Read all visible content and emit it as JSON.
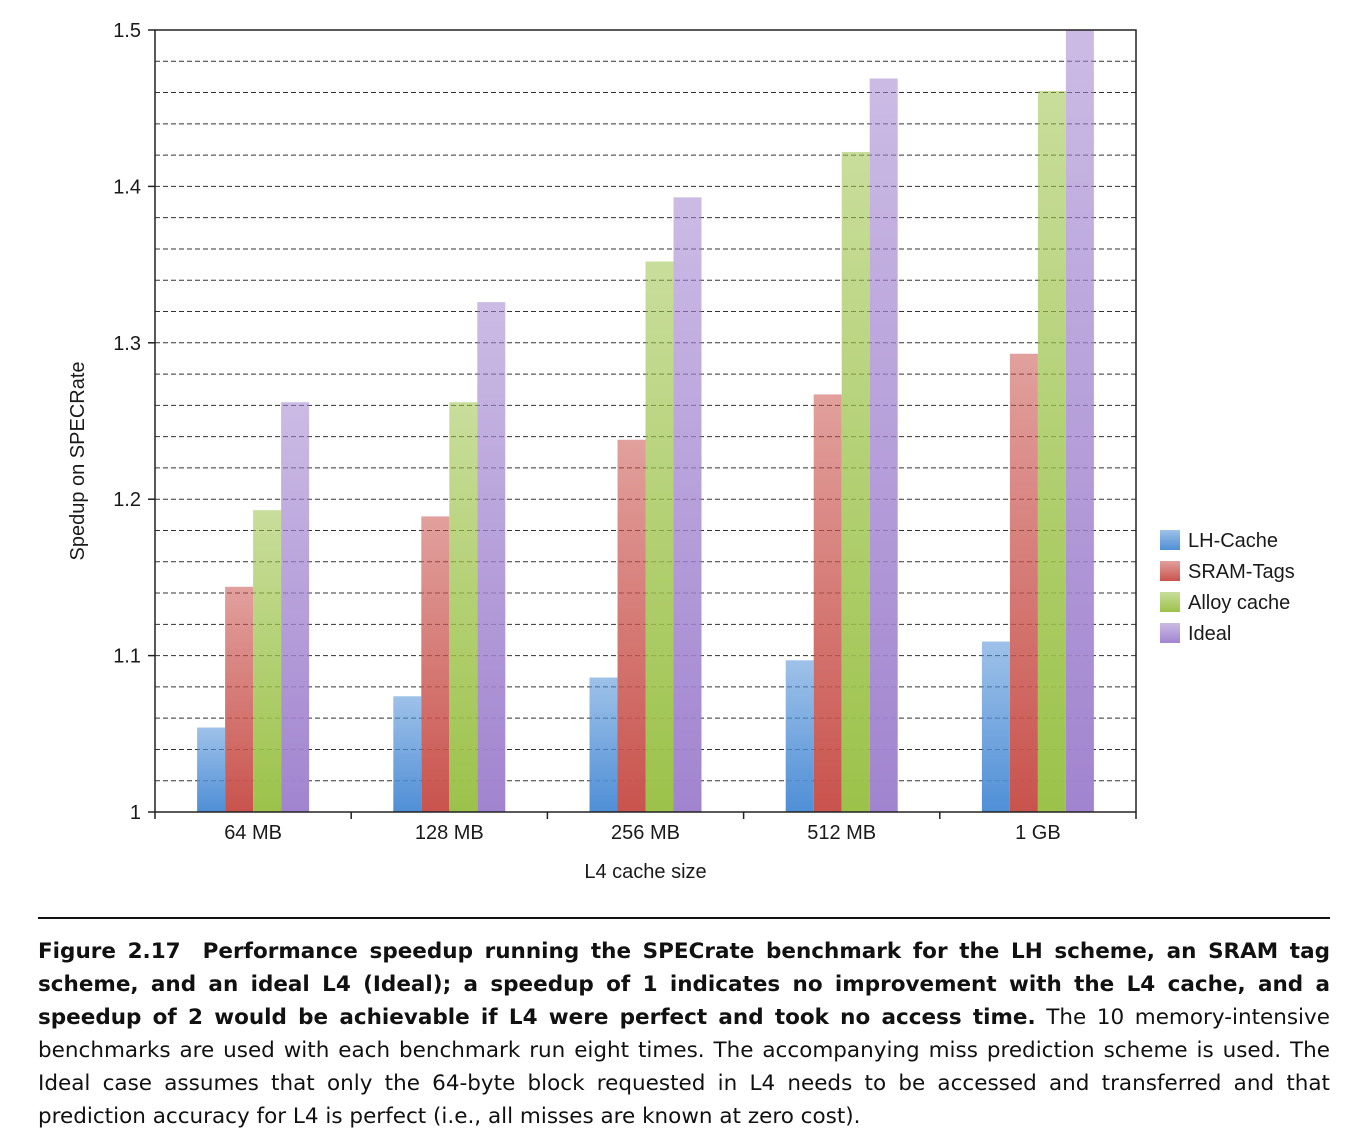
{
  "chart_data": {
    "type": "bar",
    "xlabel": "L4 cache size",
    "ylabel": "Spedup on SPECRate",
    "ylim": [
      1,
      1.5
    ],
    "yticks": [
      "1",
      "1.1",
      "1.2",
      "1.3",
      "1.4",
      "1.5"
    ],
    "ytick_values": [
      1,
      1.1,
      1.2,
      1.3,
      1.4,
      1.5
    ],
    "minor_grid_step": 0.02,
    "grid": true,
    "legend_position": "right",
    "categories": [
      "64 MB",
      "128 MB",
      "256 MB",
      "512 MB",
      "1 GB"
    ],
    "series": [
      {
        "name": "LH-Cache",
        "color": "#4f8fd6",
        "values": [
          1.054,
          1.074,
          1.086,
          1.097,
          1.109
        ]
      },
      {
        "name": "SRAM-Tags",
        "color": "#c9534d",
        "values": [
          1.144,
          1.189,
          1.238,
          1.267,
          1.293
        ]
      },
      {
        "name": "Alloy cache",
        "color": "#9cc24a",
        "values": [
          1.193,
          1.262,
          1.352,
          1.422,
          1.461
        ]
      },
      {
        "name": "Ideal",
        "color": "#a184cf",
        "values": [
          1.262,
          1.326,
          1.393,
          1.469,
          1.5
        ]
      }
    ]
  },
  "caption": {
    "label": "Figure 2.17",
    "bold_text": "Performance speedup running the SPECrate benchmark for the LH scheme, an SRAM tag scheme, and an ideal L4 (Ideal); a speedup of 1 indicates no improvement with the L4 cache, and a speedup of 2 would be achievable if L4 were perfect and took no access time.",
    "regular_text": "The 10 memory-intensive benchmarks are used with each benchmark run eight times. The accompanying miss prediction scheme is used. The Ideal case assumes that only the 64-byte block requested in L4 needs to be accessed and transferred and that prediction accuracy for L4 is perfect (i.e., all misses are known at zero cost)."
  }
}
